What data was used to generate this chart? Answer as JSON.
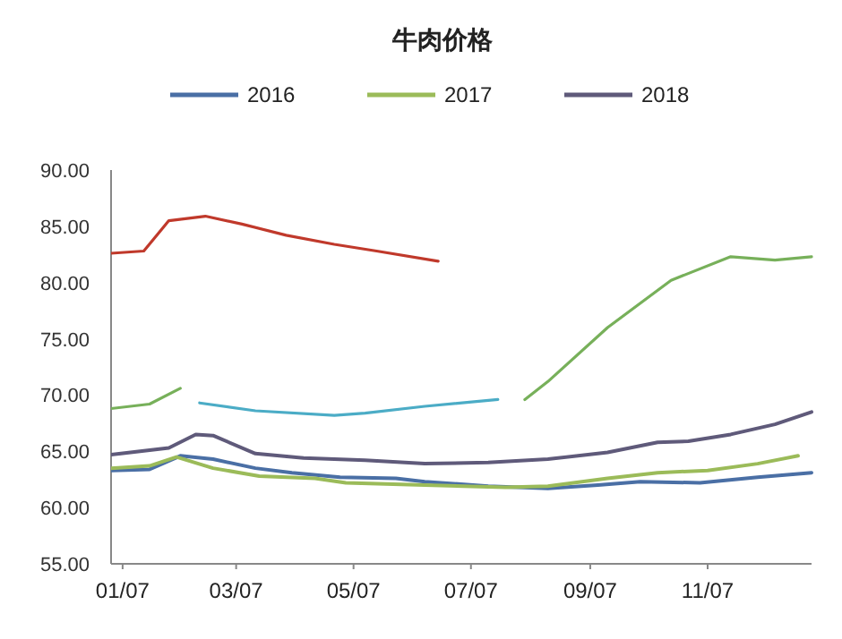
{
  "chart_data": {
    "type": "line",
    "title": "牛肉价格",
    "legend": "top",
    "grid": false,
    "marker": "none",
    "line_style": "solid",
    "xlim": [
      "--01-01",
      "--12-31"
    ],
    "xticks": [
      {
        "value": "--01-07",
        "label": "01/07"
      },
      {
        "value": "--03-07",
        "label": "03/07"
      },
      {
        "value": "--05-07",
        "label": "05/07"
      },
      {
        "value": "--07-07",
        "label": "07/07"
      },
      {
        "value": "--09-07",
        "label": "09/07"
      },
      {
        "value": "--11-07",
        "label": "11/07"
      }
    ],
    "ylim": [
      55,
      90
    ],
    "yticks": [
      {
        "value": 55,
        "label": "55.00"
      },
      {
        "value": 60,
        "label": "60.00"
      },
      {
        "value": 65,
        "label": "65.00"
      },
      {
        "value": 70,
        "label": "70.00"
      },
      {
        "value": 75,
        "label": "75.00"
      },
      {
        "value": 80,
        "label": "80.00"
      },
      {
        "value": 85,
        "label": "85.00"
      },
      {
        "value": 90,
        "label": "90.00"
      }
    ],
    "series": [
      {
        "name": null,
        "color": "#4bacc6",
        "x": [
          "--02-16",
          "--03-17",
          "--04-27",
          "--05-13",
          "--06-13",
          "--07-21"
        ],
        "values": [
          69.3,
          68.6,
          68.2,
          68.4,
          69.0,
          69.6
        ]
      },
      {
        "name": null,
        "color": "#77b05a",
        "x": [
          "--01-01",
          "--01-21",
          "--02-06",
          "--04-01",
          "--08-04",
          "--08-16",
          "--09-16",
          "--10-19",
          "--11-19",
          "--12-12",
          "--12-31"
        ],
        "values": [
          68.8,
          69.2,
          70.6,
          null,
          69.6,
          71.2,
          76.0,
          80.2,
          82.3,
          82.0,
          82.3
        ]
      },
      {
        "name": null,
        "color": "#c0392b",
        "x": [
          "--01-01",
          "--01-18",
          "--01-31",
          "--02-19",
          "--03-10",
          "--04-02",
          "--04-27",
          "--05-19",
          "--06-20"
        ],
        "values": [
          82.6,
          82.8,
          85.5,
          85.9,
          85.2,
          84.2,
          83.4,
          82.8,
          81.9
        ]
      },
      {
        "name": "2016",
        "color": "#4a6fa5",
        "x": [
          "--01-01",
          "--01-21",
          "--02-06",
          "--02-23",
          "--03-17",
          "--04-05",
          "--04-30",
          "--05-29",
          "--06-13",
          "--07-16",
          "--08-16",
          "--09-11",
          "--10-03",
          "--11-03",
          "--12-03",
          "--12-31"
        ],
        "values": [
          63.3,
          63.4,
          64.6,
          64.3,
          63.5,
          63.1,
          62.7,
          62.6,
          62.3,
          61.9,
          61.7,
          62.0,
          62.3,
          62.2,
          62.7,
          63.1
        ]
      },
      {
        "name": "2017",
        "color": "#9bbb59",
        "x": [
          "--01-01",
          "--01-21",
          "--02-04",
          "--02-23",
          "--03-19",
          "--04-17",
          "--05-03",
          "--06-13",
          "--07-25",
          "--08-16",
          "--09-16",
          "--10-12",
          "--11-07",
          "--12-03",
          "--12-24"
        ],
        "values": [
          63.5,
          63.7,
          64.5,
          63.5,
          62.8,
          62.6,
          62.2,
          62.0,
          61.8,
          61.9,
          62.6,
          63.1,
          63.3,
          63.9,
          64.6
        ]
      },
      {
        "name": "2018",
        "color": "#5f5a7a",
        "x": [
          "--01-01",
          "--01-31",
          "--02-14",
          "--02-23",
          "--03-17",
          "--04-11",
          "--05-13",
          "--06-13",
          "--07-16",
          "--08-16",
          "--09-16",
          "--10-12",
          "--10-28",
          "--11-19",
          "--12-12",
          "--12-31"
        ],
        "values": [
          64.7,
          65.3,
          66.5,
          66.4,
          64.8,
          64.4,
          64.2,
          63.9,
          64.0,
          64.3,
          64.9,
          65.8,
          65.9,
          66.5,
          67.4,
          68.5
        ]
      }
    ]
  }
}
